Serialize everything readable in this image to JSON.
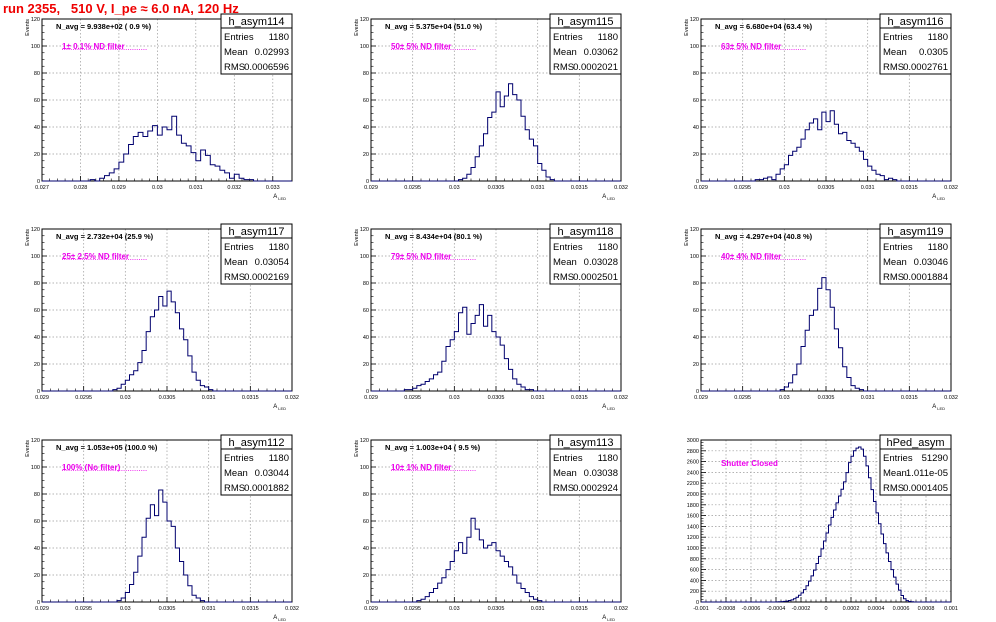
{
  "page_title": "run 2355,   510 V, I_pe ≈ 6.0 nA, 120 Hz",
  "stat_labels": {
    "entries": "Entries",
    "mean": "Mean",
    "rms": "RMS"
  },
  "colors": {
    "title": "#ee0000",
    "annotation": "#ee00ee",
    "histogram": "#00006e",
    "grid": "#9a9a9a"
  },
  "chart_data": [
    {
      "type": "histogram",
      "title": "h_asym114",
      "navg": "N_avg = 9.938e+02 ( 0.9 %)",
      "filter": "1± 0.1% ND filter",
      "entries": "1180",
      "mean": "0.02993",
      "rms": "0.0006596",
      "ylabel": "Events",
      "xlabel": "A_LED",
      "xlabel_main": "A",
      "xlabel_sub": "LED",
      "xlim": [
        0.027,
        0.0335
      ],
      "ylim": [
        0,
        120
      ],
      "xticks": [
        "0.027",
        "0.028",
        "0.029",
        "0.03",
        "0.031",
        "0.032",
        "0.033"
      ],
      "xtick_values": [
        0.027,
        0.028,
        0.029,
        0.03,
        0.031,
        0.032,
        0.033
      ],
      "yticks": [
        "0",
        "20",
        "40",
        "60",
        "80",
        "100",
        "120"
      ],
      "bins": 52,
      "counts": [
        0,
        0,
        0,
        0,
        0,
        0,
        0,
        0,
        0,
        0,
        1,
        0,
        2,
        4,
        6,
        9,
        14,
        20,
        27,
        33,
        36,
        33,
        37,
        41,
        34,
        40,
        38,
        48,
        34,
        28,
        26,
        21,
        15,
        23,
        19,
        12,
        11,
        8,
        6,
        2,
        5,
        2,
        1,
        1,
        0,
        0,
        0,
        0,
        0,
        0,
        0,
        0
      ]
    },
    {
      "type": "histogram",
      "title": "h_asym115",
      "navg": "N_avg = 5.375e+04 (51.0 %)",
      "filter": "50± 5% ND filter",
      "entries": "1180",
      "mean": "0.03062",
      "rms": "0.0002021",
      "ylabel": "Events",
      "xlabel": "A_LED",
      "xlabel_main": "A",
      "xlabel_sub": "LED",
      "xlim": [
        0.029,
        0.032
      ],
      "ylim": [
        0,
        120
      ],
      "xticks": [
        "0.029",
        "0.0295",
        "0.03",
        "0.0305",
        "0.031",
        "0.0315",
        "0.032"
      ],
      "xtick_values": [
        0.029,
        0.0295,
        0.03,
        0.0305,
        0.031,
        0.0315,
        0.032
      ],
      "yticks": [
        "0",
        "20",
        "40",
        "60",
        "80",
        "100",
        "120"
      ],
      "bins": 60,
      "counts": [
        0,
        0,
        0,
        0,
        0,
        0,
        0,
        0,
        0,
        0,
        0,
        0,
        0,
        0,
        0,
        0,
        0,
        0,
        0,
        0,
        0,
        1,
        2,
        5,
        10,
        18,
        26,
        35,
        47,
        51,
        66,
        55,
        63,
        72,
        64,
        60,
        48,
        38,
        31,
        26,
        13,
        8,
        3,
        1,
        0,
        0,
        0,
        0,
        0,
        0,
        0,
        0,
        0,
        0,
        0,
        0,
        0,
        0,
        0,
        0
      ]
    },
    {
      "type": "histogram",
      "title": "h_asym116",
      "navg": "N_avg = 6.680e+04 (63.4 %)",
      "filter": "63± 5% ND filter",
      "entries": "1180",
      "mean": "0.0305",
      "rms": "0.0002761",
      "ylabel": "Events",
      "xlabel": "A_LED",
      "xlabel_main": "A",
      "xlabel_sub": "LED",
      "xlim": [
        0.029,
        0.032
      ],
      "ylim": [
        0,
        120
      ],
      "xticks": [
        "0.029",
        "0.0295",
        "0.03",
        "0.0305",
        "0.031",
        "0.0315",
        "0.032"
      ],
      "xtick_values": [
        0.029,
        0.0295,
        0.03,
        0.0305,
        0.031,
        0.0315,
        0.032
      ],
      "yticks": [
        "0",
        "20",
        "40",
        "60",
        "80",
        "100",
        "120"
      ],
      "bins": 60,
      "counts": [
        0,
        0,
        0,
        0,
        0,
        0,
        0,
        0,
        0,
        0,
        0,
        0,
        0,
        1,
        1,
        2,
        3,
        1,
        5,
        9,
        12,
        19,
        22,
        25,
        31,
        38,
        43,
        46,
        38,
        51,
        44,
        52,
        42,
        35,
        36,
        30,
        28,
        25,
        22,
        16,
        11,
        8,
        5,
        4,
        1,
        2,
        1,
        0,
        0,
        0,
        0,
        0,
        0,
        0,
        0,
        0,
        0,
        0,
        0,
        0
      ]
    },
    {
      "type": "histogram",
      "title": "h_asym117",
      "navg": "N_avg = 2.732e+04 (25.9 %)",
      "filter": "25± 2.5% ND filter",
      "entries": "1180",
      "mean": "0.03054",
      "rms": "0.0002169",
      "ylabel": "Events",
      "xlabel": "A_LED",
      "xlabel_main": "A",
      "xlabel_sub": "LED",
      "xlim": [
        0.029,
        0.032
      ],
      "ylim": [
        0,
        120
      ],
      "xticks": [
        "0.029",
        "0.0295",
        "0.03",
        "0.0305",
        "0.031",
        "0.0315",
        "0.032"
      ],
      "xtick_values": [
        0.029,
        0.0295,
        0.03,
        0.0305,
        0.031,
        0.0315,
        0.032
      ],
      "yticks": [
        "0",
        "20",
        "40",
        "60",
        "80",
        "100",
        "120"
      ],
      "bins": 60,
      "counts": [
        0,
        0,
        0,
        0,
        0,
        0,
        0,
        0,
        0,
        0,
        0,
        0,
        0,
        0,
        0,
        0,
        0,
        1,
        2,
        5,
        8,
        12,
        15,
        21,
        30,
        44,
        55,
        60,
        70,
        63,
        74,
        66,
        58,
        46,
        38,
        26,
        14,
        8,
        4,
        3,
        1,
        0,
        0,
        0,
        0,
        0,
        0,
        0,
        0,
        0,
        0,
        0,
        0,
        0,
        0,
        0,
        0,
        0,
        0,
        0
      ]
    },
    {
      "type": "histogram",
      "title": "h_asym118",
      "navg": "N_avg = 8.434e+04 (80.1 %)",
      "filter": "79± 5% ND filter",
      "entries": "1180",
      "mean": "0.03028",
      "rms": "0.0002501",
      "ylabel": "Events",
      "xlabel": "A_LED",
      "xlabel_main": "A",
      "xlabel_sub": "LED",
      "xlim": [
        0.029,
        0.032
      ],
      "ylim": [
        0,
        120
      ],
      "xticks": [
        "0.029",
        "0.0295",
        "0.03",
        "0.0305",
        "0.031",
        "0.0315",
        "0.032"
      ],
      "xtick_values": [
        0.029,
        0.0295,
        0.03,
        0.0305,
        0.031,
        0.0315,
        0.032
      ],
      "yticks": [
        "0",
        "20",
        "40",
        "60",
        "80",
        "100",
        "120"
      ],
      "bins": 60,
      "counts": [
        0,
        0,
        0,
        0,
        0,
        0,
        0,
        0,
        1,
        1,
        2,
        4,
        5,
        7,
        9,
        12,
        14,
        22,
        33,
        38,
        44,
        58,
        62,
        42,
        50,
        56,
        64,
        48,
        56,
        44,
        40,
        34,
        24,
        16,
        9,
        5,
        3,
        1,
        1,
        0,
        0,
        0,
        0,
        0,
        0,
        0,
        0,
        0,
        0,
        0,
        0,
        0,
        0,
        0,
        0,
        0,
        0,
        0,
        0,
        0
      ]
    },
    {
      "type": "histogram",
      "title": "h_asym119",
      "navg": "N_avg = 4.297e+04 (40.8 %)",
      "filter": "40± 4% ND filter",
      "entries": "1180",
      "mean": "0.03046",
      "rms": "0.0001884",
      "ylabel": "Events",
      "xlabel": "A_LED",
      "xlabel_main": "A",
      "xlabel_sub": "LED",
      "xlim": [
        0.029,
        0.032
      ],
      "ylim": [
        0,
        120
      ],
      "xticks": [
        "0.029",
        "0.0295",
        "0.03",
        "0.0305",
        "0.031",
        "0.0315",
        "0.032"
      ],
      "xtick_values": [
        0.029,
        0.0295,
        0.03,
        0.0305,
        0.031,
        0.0315,
        0.032
      ],
      "yticks": [
        "0",
        "20",
        "40",
        "60",
        "80",
        "100",
        "120"
      ],
      "bins": 60,
      "counts": [
        0,
        0,
        0,
        0,
        0,
        0,
        0,
        0,
        0,
        0,
        0,
        0,
        0,
        0,
        0,
        0,
        0,
        0,
        0,
        1,
        3,
        6,
        12,
        20,
        33,
        45,
        56,
        60,
        76,
        84,
        75,
        62,
        46,
        32,
        18,
        10,
        4,
        2,
        1,
        0,
        0,
        0,
        0,
        0,
        0,
        0,
        0,
        0,
        0,
        0,
        0,
        0,
        0,
        0,
        0,
        0,
        0,
        0,
        0,
        0
      ]
    },
    {
      "type": "histogram",
      "title": "h_asym112",
      "navg": "N_avg = 1.053e+05 (100.0 %)",
      "filter": "100% (No filter)",
      "entries": "1180",
      "mean": "0.03044",
      "rms": "0.0001882",
      "ylabel": "Events",
      "xlabel": "A_LED",
      "xlabel_main": "A",
      "xlabel_sub": "LED",
      "xlim": [
        0.029,
        0.032
      ],
      "ylim": [
        0,
        120
      ],
      "xticks": [
        "0.029",
        "0.0295",
        "0.03",
        "0.0305",
        "0.031",
        "0.0315",
        "0.032"
      ],
      "xtick_values": [
        0.029,
        0.0295,
        0.03,
        0.0305,
        0.031,
        0.0315,
        0.032
      ],
      "yticks": [
        "0",
        "20",
        "40",
        "60",
        "80",
        "100",
        "120"
      ],
      "bins": 60,
      "counts": [
        0,
        0,
        0,
        0,
        0,
        0,
        0,
        0,
        0,
        0,
        0,
        0,
        0,
        0,
        0,
        0,
        0,
        0,
        1,
        3,
        7,
        13,
        22,
        34,
        48,
        62,
        72,
        64,
        83,
        74,
        60,
        56,
        40,
        30,
        20,
        12,
        5,
        3,
        1,
        0,
        0,
        0,
        0,
        0,
        0,
        0,
        0,
        0,
        0,
        0,
        0,
        0,
        0,
        0,
        0,
        0,
        0,
        0,
        0,
        0
      ]
    },
    {
      "type": "histogram",
      "title": "h_asym113",
      "navg": "N_avg = 1.003e+04 ( 9.5 %)",
      "filter": "10± 1% ND filter",
      "entries": "1180",
      "mean": "0.03038",
      "rms": "0.0002924",
      "ylabel": "Events",
      "xlabel": "A_LED",
      "xlabel_main": "A",
      "xlabel_sub": "LED",
      "xlim": [
        0.029,
        0.032
      ],
      "ylim": [
        0,
        120
      ],
      "xticks": [
        "0.029",
        "0.0295",
        "0.03",
        "0.0305",
        "0.031",
        "0.0315",
        "0.032"
      ],
      "xtick_values": [
        0.029,
        0.0295,
        0.03,
        0.0305,
        0.031,
        0.0315,
        0.032
      ],
      "yticks": [
        "0",
        "20",
        "40",
        "60",
        "80",
        "100",
        "120"
      ],
      "bins": 60,
      "counts": [
        0,
        0,
        0,
        0,
        0,
        0,
        0,
        0,
        0,
        0,
        0,
        1,
        2,
        4,
        7,
        10,
        14,
        18,
        24,
        30,
        38,
        44,
        36,
        48,
        62,
        54,
        46,
        40,
        42,
        44,
        38,
        34,
        30,
        26,
        20,
        14,
        10,
        7,
        4,
        2,
        1,
        0,
        0,
        0,
        0,
        0,
        0,
        0,
        0,
        0,
        0,
        0,
        0,
        0,
        0,
        0,
        0,
        0,
        0,
        0
      ]
    },
    {
      "type": "histogram",
      "title": "hPed_asym",
      "navg": "",
      "filter": "Shutter Closed",
      "entries": "51290",
      "mean": "1.011e-05",
      "rms": "0.0001405",
      "ylabel": "",
      "xlabel": "",
      "xlabel_main": "",
      "xlabel_sub": "",
      "xlim": [
        -0.001,
        0.001
      ],
      "ylim": [
        0,
        3000
      ],
      "xticks": [
        "-0.001",
        "-0.0008",
        "-0.0006",
        "-0.0004",
        "-0.0002",
        "0",
        "0.0002",
        "0.0004",
        "0.0006",
        "0.0008",
        "0.001"
      ],
      "xtick_values": [
        -0.001,
        -0.0008,
        -0.0006,
        -0.0004,
        -0.0002,
        0,
        0.0002,
        0.0004,
        0.0006,
        0.0008,
        0.001
      ],
      "yticks": [
        "0",
        "200",
        "400",
        "600",
        "800",
        "1000",
        "1200",
        "1400",
        "1600",
        "1800",
        "2000",
        "2200",
        "2400",
        "2600",
        "2800",
        "3000"
      ],
      "bins": 100,
      "counts": [
        0,
        0,
        0,
        0,
        0,
        0,
        0,
        0,
        0,
        0,
        0,
        0,
        0,
        0,
        0,
        0,
        0,
        0,
        0,
        0,
        0,
        0,
        0,
        0,
        0,
        0,
        0,
        0,
        1,
        1,
        2,
        4,
        7,
        11,
        17,
        27,
        40,
        60,
        87,
        124,
        170,
        229,
        301,
        386,
        483,
        591,
        712,
        844,
        984,
        1130,
        1278,
        1426,
        1568,
        1704,
        1836,
        1962,
        2088,
        2224,
        2396,
        2580,
        2700,
        2800,
        2850,
        2870,
        2830,
        2700,
        2520,
        2300,
        2080,
        1860,
        1650,
        1450,
        1260,
        1080,
        910,
        750,
        600,
        460,
        330,
        220,
        120,
        60,
        26,
        10,
        4,
        1,
        0,
        0,
        0,
        0,
        0,
        0,
        0,
        0,
        0,
        0,
        0,
        0,
        0,
        0
      ]
    }
  ]
}
